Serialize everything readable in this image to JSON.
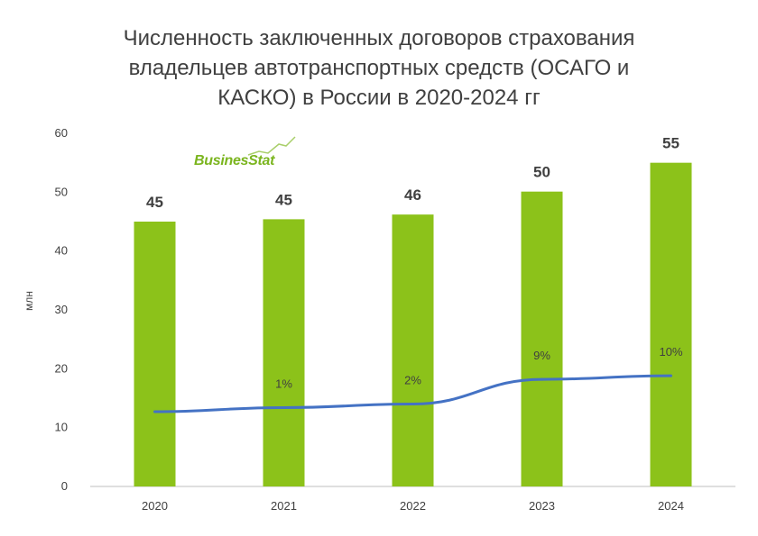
{
  "chart_data": {
    "type": "bar",
    "title": [
      "Численность заключенных договоров страхования",
      "владельцев автотранспортных средств (ОСАГО и",
      "КАСКО) в России в 2020-2024 гг"
    ],
    "ylabel": "млн",
    "ylim": [
      0,
      60
    ],
    "yticks": [
      "0",
      "10",
      "20",
      "30",
      "40",
      "50",
      "60"
    ],
    "categories": [
      "2020",
      "2021",
      "2022",
      "2023",
      "2024"
    ],
    "series": [
      {
        "type": "bar",
        "values": [
          45,
          45.4,
          46.2,
          50.1,
          55
        ],
        "labels": [
          "45",
          "45",
          "46",
          "50",
          "55"
        ],
        "color": "#8cc21a"
      },
      {
        "type": "line",
        "values": [
          12.7,
          13.4,
          14.0,
          18.2,
          18.8
        ],
        "labels": [
          "",
          "1%",
          "2%",
          "9%",
          "10%"
        ],
        "color": "#4472c4"
      }
    ],
    "grid": false
  },
  "logo": {
    "text": "BusinesStat"
  }
}
